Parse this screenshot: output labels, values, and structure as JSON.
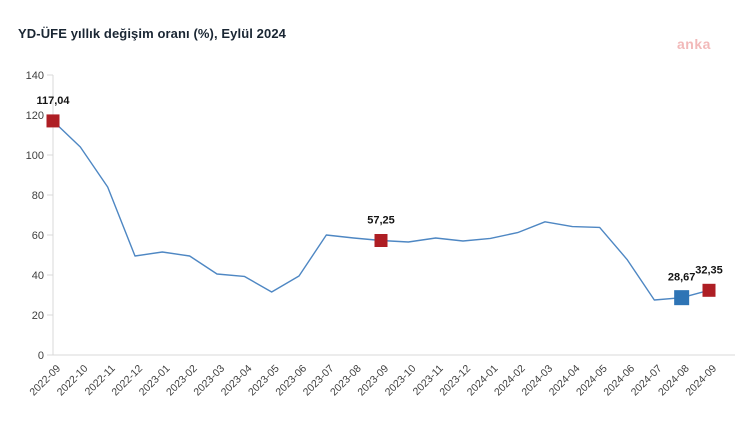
{
  "header": {
    "title": "YD-ÜFE yıllık değişim oranı (%), Eylül 2024",
    "title_color": "#1a2633"
  },
  "watermark": {
    "text": "anka",
    "color": "#f2b9b9"
  },
  "chart_data": {
    "type": "line",
    "title": "YD-ÜFE yıllık değişim oranı (%), Eylül 2024",
    "x": [
      "2022-09",
      "2022-10",
      "2022-11",
      "2022-12",
      "2023-01",
      "2023-02",
      "2023-03",
      "2023-04",
      "2023-05",
      "2023-06",
      "2023-07",
      "2023-08",
      "2023-09",
      "2023-10",
      "2023-11",
      "2023-12",
      "2024-01",
      "2024-02",
      "2024-03",
      "2024-04",
      "2024-05",
      "2024-06",
      "2024-07",
      "2024-08",
      "2024-09"
    ],
    "series": [
      {
        "name": "YD-ÜFE yıllık değişim oranı (%)",
        "values": [
          117.04,
          104.0,
          84.0,
          49.5,
          51.5,
          49.5,
          40.5,
          39.3,
          31.5,
          39.5,
          60.0,
          58.5,
          57.25,
          56.5,
          58.5,
          57.0,
          58.3,
          61.2,
          66.6,
          64.2,
          63.8,
          47.8,
          27.5,
          28.67,
          32.35
        ]
      }
    ],
    "ylim": [
      0,
      140
    ],
    "ytick_step": 20,
    "grid": false,
    "legend": "none",
    "line_color": "#4E87C3",
    "axis_color": "#D9D9D9",
    "tick_label_color": "#3f3f3f",
    "annotation_text_color": "#141414",
    "annotations": [
      {
        "x": "2022-09",
        "value": 117.04,
        "label": "117,04",
        "marker_color": "#AE1E24",
        "marker_size": 13
      },
      {
        "x": "2023-09",
        "value": 57.25,
        "label": "57,25",
        "marker_color": "#AE1E24",
        "marker_size": 13
      },
      {
        "x": "2024-08",
        "value": 28.67,
        "label": "28,67",
        "marker_color": "#2E74B5",
        "marker_size": 15
      },
      {
        "x": "2024-09",
        "value": 32.35,
        "label": "32,35",
        "marker_color": "#AE1E24",
        "marker_size": 13
      }
    ]
  }
}
